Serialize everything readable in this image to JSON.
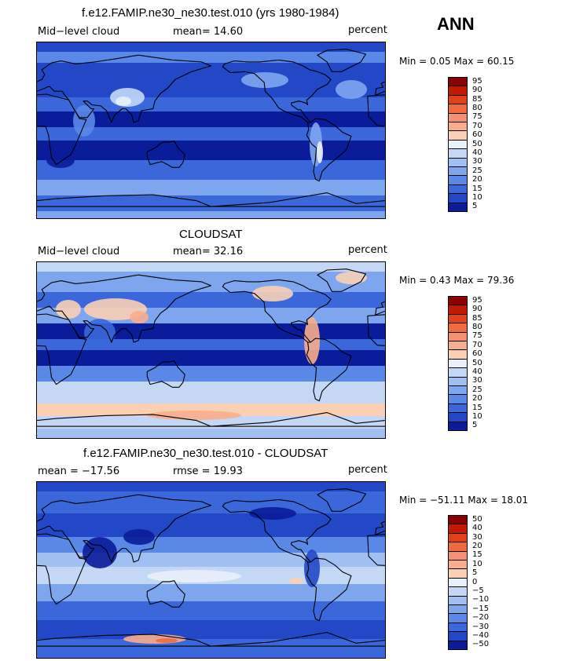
{
  "season": "ANN",
  "panels": [
    {
      "title": "f.e12.FAMIP.ne30_ne30.test.010 (yrs 1980-1984)",
      "left_label": "Mid−level cloud",
      "mid_label": "mean=   14.60",
      "units": "percent",
      "minmax": "Min =     0.05  Max =   60.15",
      "levels": [
        "95",
        "90",
        "85",
        "80",
        "75",
        "70",
        "60",
        "50",
        "40",
        "30",
        "25",
        "20",
        "15",
        "10",
        "5"
      ],
      "colors": [
        "#8b0000",
        "#c21a00",
        "#e0401a",
        "#f06a40",
        "#f59070",
        "#f8ad8c",
        "#fbcfb4",
        "#e8f0fa",
        "#c4d8f6",
        "#a0c0f2",
        "#7ea6ee",
        "#5a88e6",
        "#3a68da",
        "#2248c8",
        "#0a1c9a"
      ],
      "style": "model"
    },
    {
      "title": "CLOUDSAT",
      "left_label": "Mid−level cloud",
      "mid_label": "mean=   32.16",
      "units": "percent",
      "minmax": "Min =     0.43  Max =   79.36",
      "levels": [
        "95",
        "90",
        "85",
        "80",
        "75",
        "70",
        "60",
        "50",
        "40",
        "30",
        "25",
        "20",
        "15",
        "10",
        "5"
      ],
      "colors": [
        "#8b0000",
        "#c21a00",
        "#e0401a",
        "#f06a40",
        "#f59070",
        "#f8ad8c",
        "#fbcfb4",
        "#e8f0fa",
        "#c4d8f6",
        "#a0c0f2",
        "#7ea6ee",
        "#5a88e6",
        "#3a68da",
        "#2248c8",
        "#0a1c9a"
      ],
      "style": "obs"
    },
    {
      "title": "f.e12.FAMIP.ne30_ne30.test.010 - CLOUDSAT",
      "left_label": "mean = −17.56",
      "mid_label": "rmse =   19.93",
      "units": "percent",
      "minmax": "Min = −51.11  Max =   18.01",
      "levels": [
        "50",
        "40",
        "30",
        "20",
        "15",
        "10",
        "5",
        "0",
        "−5",
        "−10",
        "−15",
        "−20",
        "−30",
        "−40",
        "−50"
      ],
      "colors": [
        "#8b0000",
        "#c21a00",
        "#e0401a",
        "#f06a40",
        "#f59070",
        "#f8ad8c",
        "#fbcfb4",
        "#e8f0fa",
        "#c4d8f6",
        "#a0c0f2",
        "#7ea6ee",
        "#5a88e6",
        "#3a68da",
        "#2248c8",
        "#0a1c9a"
      ],
      "style": "diff"
    }
  ]
}
